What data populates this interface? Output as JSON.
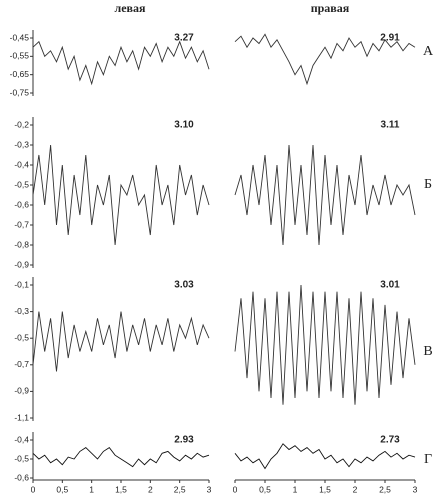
{
  "columns": [
    "левая",
    "правая"
  ],
  "rows": [
    "А",
    "Б",
    "В",
    "Г"
  ],
  "chart_data": [
    {
      "type": "line",
      "annotation": "3.27",
      "color": "#333333",
      "xlim": [
        0,
        3
      ],
      "ylim": [
        -0.75,
        -0.45
      ],
      "yticks": [
        {
          "value": -0.45,
          "label": "-0,45"
        },
        {
          "value": -0.55,
          "label": "-0,55"
        },
        {
          "value": -0.65,
          "label": "-0,65"
        },
        {
          "value": -0.75,
          "label": "-0,75"
        }
      ],
      "x": [
        0,
        0.1,
        0.2,
        0.3,
        0.4,
        0.5,
        0.6,
        0.7,
        0.8,
        0.9,
        1,
        1.1,
        1.2,
        1.3,
        1.4,
        1.5,
        1.6,
        1.7,
        1.8,
        1.9,
        2,
        2.1,
        2.2,
        2.3,
        2.4,
        2.5,
        2.6,
        2.7,
        2.8,
        2.9,
        3
      ],
      "values": [
        -0.5,
        -0.47,
        -0.55,
        -0.52,
        -0.58,
        -0.5,
        -0.62,
        -0.55,
        -0.68,
        -0.6,
        -0.7,
        -0.58,
        -0.65,
        -0.55,
        -0.6,
        -0.5,
        -0.58,
        -0.52,
        -0.62,
        -0.5,
        -0.55,
        -0.48,
        -0.58,
        -0.5,
        -0.55,
        -0.47,
        -0.56,
        -0.5,
        -0.58,
        -0.52,
        -0.62
      ]
    },
    {
      "type": "line",
      "annotation": "2.91",
      "color": "#333333",
      "xlim": [
        0,
        3
      ],
      "ylim": [
        -0.75,
        -0.45
      ],
      "x": [
        0,
        0.1,
        0.2,
        0.3,
        0.4,
        0.5,
        0.6,
        0.7,
        0.8,
        0.9,
        1,
        1.1,
        1.2,
        1.3,
        1.4,
        1.5,
        1.6,
        1.7,
        1.8,
        1.9,
        2,
        2.1,
        2.2,
        2.3,
        2.4,
        2.5,
        2.6,
        2.7,
        2.8,
        2.9,
        3
      ],
      "values": [
        -0.47,
        -0.44,
        -0.5,
        -0.45,
        -0.48,
        -0.43,
        -0.5,
        -0.46,
        -0.52,
        -0.58,
        -0.65,
        -0.6,
        -0.7,
        -0.6,
        -0.55,
        -0.5,
        -0.56,
        -0.48,
        -0.52,
        -0.45,
        -0.5,
        -0.47,
        -0.55,
        -0.48,
        -0.52,
        -0.46,
        -0.5,
        -0.47,
        -0.52,
        -0.48,
        -0.5
      ]
    },
    {
      "type": "line",
      "annotation": "3.10",
      "color": "#333333",
      "xlim": [
        0,
        3
      ],
      "ylim": [
        -0.9,
        -0.2
      ],
      "yticks": [
        {
          "value": -0.2,
          "label": "-0,2"
        },
        {
          "value": -0.3,
          "label": "-0,3"
        },
        {
          "value": -0.4,
          "label": "-0,4"
        },
        {
          "value": -0.5,
          "label": "-0,5"
        },
        {
          "value": -0.6,
          "label": "-0,6"
        },
        {
          "value": -0.7,
          "label": "-0,7"
        },
        {
          "value": -0.8,
          "label": "-0,8"
        },
        {
          "value": -0.9,
          "label": "-0,9"
        }
      ],
      "x": [
        0,
        0.1,
        0.2,
        0.3,
        0.4,
        0.5,
        0.6,
        0.7,
        0.8,
        0.9,
        1,
        1.1,
        1.2,
        1.3,
        1.4,
        1.5,
        1.6,
        1.7,
        1.8,
        1.9,
        2,
        2.1,
        2.2,
        2.3,
        2.4,
        2.5,
        2.6,
        2.7,
        2.8,
        2.9,
        3
      ],
      "values": [
        -0.55,
        -0.35,
        -0.6,
        -0.3,
        -0.7,
        -0.4,
        -0.75,
        -0.45,
        -0.65,
        -0.35,
        -0.7,
        -0.5,
        -0.6,
        -0.45,
        -0.8,
        -0.5,
        -0.55,
        -0.45,
        -0.6,
        -0.55,
        -0.75,
        -0.4,
        -0.6,
        -0.5,
        -0.7,
        -0.4,
        -0.55,
        -0.45,
        -0.65,
        -0.5,
        -0.6
      ]
    },
    {
      "type": "line",
      "annotation": "3.11",
      "color": "#333333",
      "xlim": [
        0,
        3
      ],
      "ylim": [
        -0.9,
        -0.2
      ],
      "x": [
        0,
        0.1,
        0.2,
        0.3,
        0.4,
        0.5,
        0.6,
        0.7,
        0.8,
        0.9,
        1,
        1.1,
        1.2,
        1.3,
        1.4,
        1.5,
        1.6,
        1.7,
        1.8,
        1.9,
        2,
        2.1,
        2.2,
        2.3,
        2.4,
        2.5,
        2.6,
        2.7,
        2.8,
        2.9,
        3
      ],
      "values": [
        -0.55,
        -0.45,
        -0.65,
        -0.4,
        -0.6,
        -0.35,
        -0.7,
        -0.4,
        -0.8,
        -0.3,
        -0.7,
        -0.4,
        -0.75,
        -0.3,
        -0.8,
        -0.35,
        -0.7,
        -0.4,
        -0.75,
        -0.45,
        -0.6,
        -0.35,
        -0.65,
        -0.5,
        -0.6,
        -0.45,
        -0.6,
        -0.5,
        -0.55,
        -0.5,
        -0.65
      ]
    },
    {
      "type": "line",
      "annotation": "3.03",
      "color": "#333333",
      "xlim": [
        0,
        3
      ],
      "ylim": [
        -1.1,
        -0.1
      ],
      "yticks": [
        {
          "value": -0.1,
          "label": "-0,1"
        },
        {
          "value": -0.3,
          "label": "-0,3"
        },
        {
          "value": -0.5,
          "label": "-0,5"
        },
        {
          "value": -0.7,
          "label": "-0,7"
        },
        {
          "value": -0.9,
          "label": "-0,9"
        },
        {
          "value": -1.1,
          "label": "-1,1"
        }
      ],
      "x": [
        0,
        0.1,
        0.2,
        0.3,
        0.4,
        0.5,
        0.6,
        0.7,
        0.8,
        0.9,
        1,
        1.1,
        1.2,
        1.3,
        1.4,
        1.5,
        1.6,
        1.7,
        1.8,
        1.9,
        2,
        2.1,
        2.2,
        2.3,
        2.4,
        2.5,
        2.6,
        2.7,
        2.8,
        2.9,
        3
      ],
      "values": [
        -0.7,
        -0.3,
        -0.6,
        -0.35,
        -0.75,
        -0.3,
        -0.65,
        -0.4,
        -0.6,
        -0.45,
        -0.6,
        -0.35,
        -0.55,
        -0.4,
        -0.65,
        -0.3,
        -0.6,
        -0.4,
        -0.55,
        -0.35,
        -0.6,
        -0.4,
        -0.55,
        -0.35,
        -0.6,
        -0.4,
        -0.5,
        -0.35,
        -0.55,
        -0.4,
        -0.5
      ]
    },
    {
      "type": "line",
      "annotation": "3.01",
      "color": "#333333",
      "xlim": [
        0,
        3
      ],
      "ylim": [
        -1.1,
        -0.1
      ],
      "x": [
        0,
        0.1,
        0.2,
        0.3,
        0.4,
        0.5,
        0.6,
        0.7,
        0.8,
        0.9,
        1,
        1.1,
        1.2,
        1.3,
        1.4,
        1.5,
        1.6,
        1.7,
        1.8,
        1.9,
        2,
        2.1,
        2.2,
        2.3,
        2.4,
        2.5,
        2.6,
        2.7,
        2.8,
        2.9,
        3
      ],
      "values": [
        -0.6,
        -0.2,
        -0.8,
        -0.15,
        -0.9,
        -0.2,
        -0.95,
        -0.15,
        -1.0,
        -0.15,
        -0.95,
        -0.1,
        -0.9,
        -0.15,
        -0.95,
        -0.15,
        -0.9,
        -0.15,
        -0.95,
        -0.2,
        -1.0,
        -0.15,
        -0.9,
        -0.2,
        -0.95,
        -0.25,
        -0.85,
        -0.3,
        -0.8,
        -0.35,
        -0.7
      ]
    },
    {
      "type": "line",
      "annotation": "2.93",
      "color": "#111111",
      "xlim": [
        0,
        3
      ],
      "ylim": [
        -0.6,
        -0.4
      ],
      "yticks": [
        {
          "value": -0.4,
          "label": "-0,4"
        },
        {
          "value": -0.5,
          "label": "-0,5"
        },
        {
          "value": -0.6,
          "label": "-0,6"
        }
      ],
      "xticks": [
        0,
        {
          "value": 0.5,
          "label": "0,5"
        },
        1,
        {
          "value": 1.5,
          "label": "1,5"
        },
        2,
        {
          "value": 2.5,
          "label": "2,5"
        },
        3
      ],
      "x": [
        0,
        0.1,
        0.2,
        0.3,
        0.4,
        0.5,
        0.6,
        0.7,
        0.8,
        0.9,
        1,
        1.1,
        1.2,
        1.3,
        1.4,
        1.5,
        1.6,
        1.7,
        1.8,
        1.9,
        2,
        2.1,
        2.2,
        2.3,
        2.4,
        2.5,
        2.6,
        2.7,
        2.8,
        2.9,
        3
      ],
      "values": [
        -0.47,
        -0.5,
        -0.48,
        -0.52,
        -0.5,
        -0.53,
        -0.49,
        -0.5,
        -0.46,
        -0.44,
        -0.47,
        -0.5,
        -0.46,
        -0.44,
        -0.48,
        -0.5,
        -0.52,
        -0.54,
        -0.5,
        -0.53,
        -0.5,
        -0.52,
        -0.47,
        -0.46,
        -0.49,
        -0.51,
        -0.48,
        -0.5,
        -0.47,
        -0.49,
        -0.48
      ]
    },
    {
      "type": "line",
      "annotation": "2.73",
      "color": "#111111",
      "xlim": [
        0,
        3
      ],
      "ylim": [
        -0.6,
        -0.4
      ],
      "xticks": [
        0,
        {
          "value": 0.5,
          "label": "0,5"
        },
        1,
        {
          "value": 1.5,
          "label": "1,5"
        },
        2,
        {
          "value": 2.5,
          "label": "2,5"
        },
        3
      ],
      "x": [
        0,
        0.1,
        0.2,
        0.3,
        0.4,
        0.5,
        0.6,
        0.7,
        0.8,
        0.9,
        1,
        1.1,
        1.2,
        1.3,
        1.4,
        1.5,
        1.6,
        1.7,
        1.8,
        1.9,
        2,
        2.1,
        2.2,
        2.3,
        2.4,
        2.5,
        2.6,
        2.7,
        2.8,
        2.9,
        3
      ],
      "values": [
        -0.47,
        -0.51,
        -0.49,
        -0.52,
        -0.5,
        -0.55,
        -0.5,
        -0.47,
        -0.42,
        -0.45,
        -0.43,
        -0.46,
        -0.44,
        -0.47,
        -0.45,
        -0.5,
        -0.48,
        -0.52,
        -0.5,
        -0.54,
        -0.5,
        -0.52,
        -0.49,
        -0.51,
        -0.48,
        -0.46,
        -0.49,
        -0.47,
        -0.5,
        -0.48,
        -0.49
      ]
    }
  ]
}
